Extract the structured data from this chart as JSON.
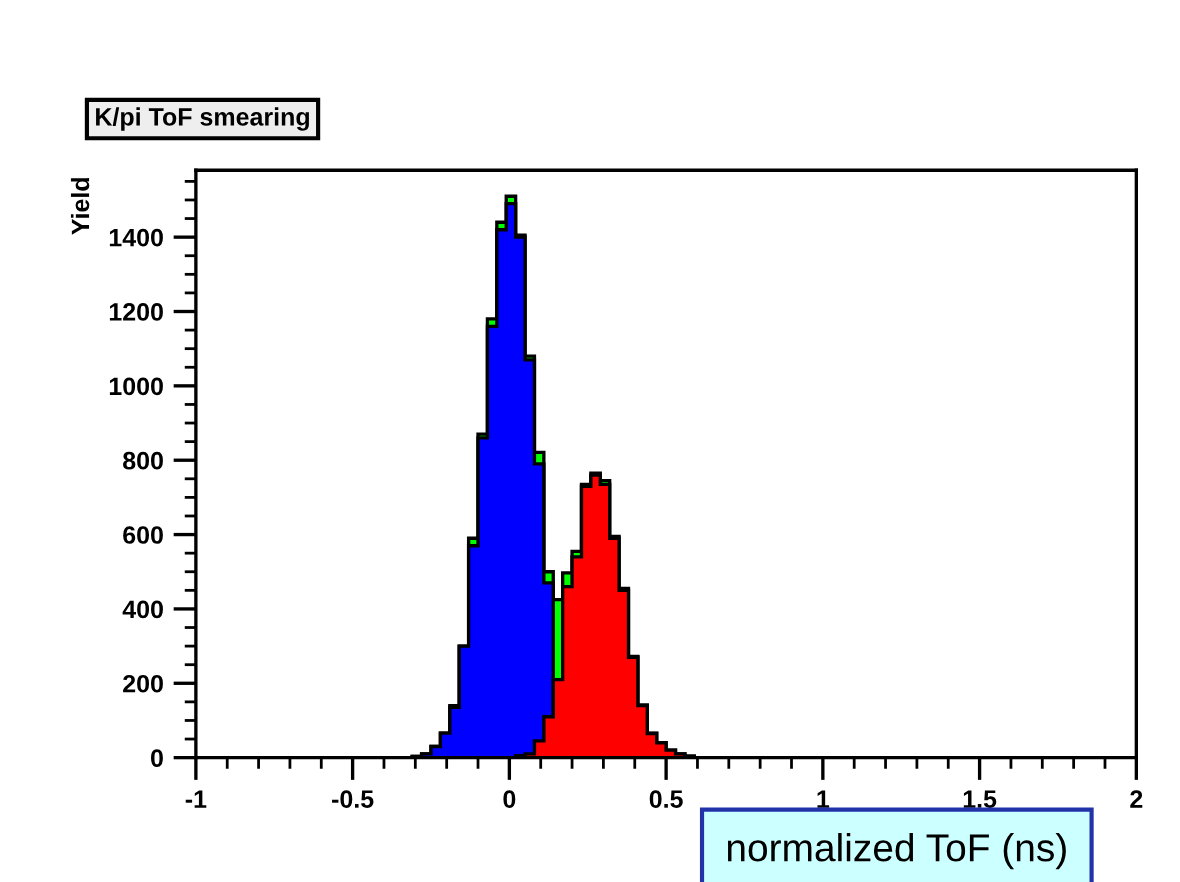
{
  "chart_data": {
    "type": "histogram",
    "title": "K/pi ToF smearing",
    "xlabel": "normalized ToF (ns)",
    "ylabel": "Yield",
    "bins": [
      -0.31,
      -0.28,
      -0.25,
      -0.22,
      -0.19,
      -0.16,
      -0.13,
      -0.1,
      -0.07,
      -0.04,
      -0.01,
      0.02,
      0.05,
      0.08,
      0.11,
      0.14,
      0.17,
      0.2,
      0.23,
      0.26,
      0.29,
      0.32,
      0.35,
      0.38,
      0.41,
      0.44,
      0.47,
      0.5,
      0.53,
      0.56,
      0.59
    ],
    "series": [
      {
        "color": "#00ff00",
        "values": [
          3,
          10,
          30,
          66,
          140,
          300,
          590,
          870,
          1180,
          1440,
          1510,
          1405,
          1080,
          821,
          500,
          425,
          497,
          555,
          735,
          765,
          745,
          595,
          455,
          272,
          142,
          66,
          40,
          20,
          10,
          4
        ]
      },
      {
        "color": "#0000ff",
        "bins": [
          -0.31,
          -0.28,
          -0.25,
          -0.22,
          -0.19,
          -0.16,
          -0.13,
          -0.1,
          -0.07,
          -0.04,
          -0.01,
          0.02,
          0.05,
          0.08,
          0.11,
          0.14
        ],
        "values": [
          3,
          10,
          30,
          66,
          135,
          300,
          570,
          860,
          1160,
          1420,
          1490,
          1400,
          1070,
          790,
          470
        ]
      },
      {
        "color": "#ff0000",
        "values": [
          0,
          0,
          0,
          0,
          0,
          0,
          0,
          0,
          0,
          0,
          0,
          5,
          10,
          45,
          110,
          210,
          460,
          540,
          730,
          760,
          735,
          590,
          450,
          270,
          140,
          65,
          40,
          20,
          10,
          4
        ]
      }
    ],
    "xlim": [
      -1,
      2
    ],
    "xticks": [
      -1,
      -0.5,
      0,
      0.5,
      1,
      1.5,
      2
    ],
    "ylim": [
      0,
      1580
    ],
    "yticks": [
      0,
      200,
      400,
      600,
      800,
      1000,
      1200,
      1400
    ],
    "grid": false,
    "legend": false
  }
}
